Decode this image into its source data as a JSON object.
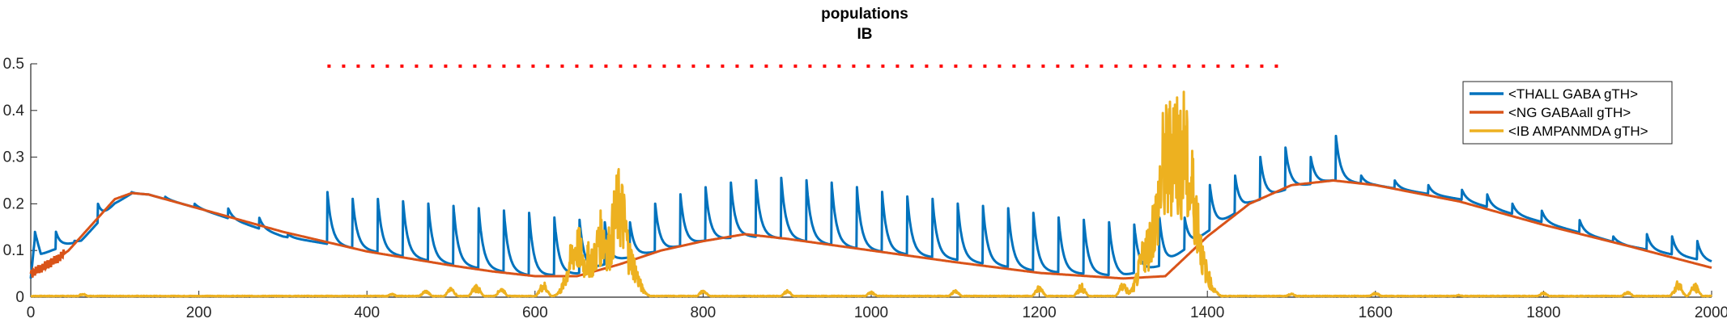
{
  "chart_data": {
    "type": "line",
    "title": "populations",
    "subtitle": "IB",
    "xlabel": "",
    "ylabel": "",
    "xlim": [
      0,
      2000
    ],
    "ylim": [
      0,
      0.5
    ],
    "x_ticks": [
      0,
      200,
      400,
      600,
      800,
      1000,
      1200,
      1400,
      1600,
      1800,
      2000
    ],
    "y_ticks": [
      0,
      0.1,
      0.2,
      0.3,
      0.4,
      0.5
    ],
    "y_tick_labels": [
      "0",
      "0.1",
      "0.2",
      "0.3",
      "0.4",
      "0.5"
    ],
    "grid": false,
    "legend_position": "top-right",
    "series": [
      {
        "name": "<THALL GABA gTH>",
        "color": "#0072BD",
        "baseline_points": [
          [
            0,
            0.04
          ],
          [
            5,
            0.13
          ],
          [
            12,
            0.09
          ],
          [
            25,
            0.1
          ],
          [
            40,
            0.11
          ],
          [
            60,
            0.12
          ],
          [
            80,
            0.16
          ],
          [
            100,
            0.2
          ],
          [
            120,
            0.222
          ],
          [
            140,
            0.22
          ],
          [
            200,
            0.19
          ],
          [
            300,
            0.13
          ],
          [
            350,
            0.115
          ],
          [
            400,
            0.1
          ],
          [
            500,
            0.07
          ],
          [
            600,
            0.045
          ],
          [
            650,
            0.05
          ],
          [
            700,
            0.08
          ],
          [
            750,
            0.1
          ],
          [
            800,
            0.12
          ],
          [
            850,
            0.13
          ],
          [
            900,
            0.125
          ],
          [
            1000,
            0.1
          ],
          [
            1100,
            0.08
          ],
          [
            1200,
            0.055
          ],
          [
            1300,
            0.045
          ],
          [
            1350,
            0.07
          ],
          [
            1400,
            0.14
          ],
          [
            1450,
            0.2
          ],
          [
            1500,
            0.235
          ],
          [
            1550,
            0.25
          ],
          [
            1600,
            0.24
          ],
          [
            1700,
            0.21
          ],
          [
            1800,
            0.16
          ],
          [
            1900,
            0.11
          ],
          [
            2000,
            0.075
          ]
        ],
        "pulse_times": [
          5,
          30,
          52,
          80,
          120,
          160,
          195,
          235,
          272,
          306,
          353,
          383,
          413,
          443,
          473,
          503,
          533,
          563,
          593,
          623,
          653,
          683,
          713,
          743,
          773,
          803,
          833,
          863,
          893,
          923,
          953,
          983,
          1013,
          1043,
          1073,
          1103,
          1133,
          1163,
          1193,
          1223,
          1253,
          1283,
          1313,
          1343,
          1373,
          1403,
          1433,
          1463,
          1493,
          1523,
          1553,
          1583,
          1623,
          1663,
          1703,
          1733,
          1763,
          1798,
          1843,
          1883,
          1923,
          1953,
          1983
        ],
        "pulse_peaks": [
          0.14,
          0.14,
          0.12,
          0.2,
          0.225,
          0.215,
          0.2,
          0.19,
          0.17,
          0.135,
          0.225,
          0.21,
          0.21,
          0.205,
          0.2,
          0.195,
          0.19,
          0.185,
          0.18,
          0.17,
          0.165,
          0.16,
          0.16,
          0.2,
          0.22,
          0.235,
          0.245,
          0.25,
          0.255,
          0.25,
          0.245,
          0.235,
          0.225,
          0.215,
          0.21,
          0.2,
          0.195,
          0.19,
          0.18,
          0.17,
          0.165,
          0.16,
          0.155,
          0.17,
          0.17,
          0.24,
          0.26,
          0.3,
          0.32,
          0.3,
          0.345,
          0.26,
          0.25,
          0.24,
          0.23,
          0.22,
          0.2,
          0.185,
          0.165,
          0.13,
          0.135,
          0.13,
          0.12
        ]
      },
      {
        "name": "<NG GABAall gTH>",
        "color": "#D95319",
        "points": [
          [
            0,
            0.05
          ],
          [
            10,
            0.06
          ],
          [
            20,
            0.07
          ],
          [
            30,
            0.08
          ],
          [
            45,
            0.1
          ],
          [
            60,
            0.13
          ],
          [
            80,
            0.17
          ],
          [
            100,
            0.21
          ],
          [
            120,
            0.223
          ],
          [
            140,
            0.22
          ],
          [
            200,
            0.19
          ],
          [
            300,
            0.14
          ],
          [
            400,
            0.098
          ],
          [
            500,
            0.068
          ],
          [
            550,
            0.055
          ],
          [
            600,
            0.045
          ],
          [
            650,
            0.045
          ],
          [
            700,
            0.07
          ],
          [
            750,
            0.1
          ],
          [
            800,
            0.12
          ],
          [
            850,
            0.135
          ],
          [
            900,
            0.125
          ],
          [
            1000,
            0.1
          ],
          [
            1100,
            0.075
          ],
          [
            1200,
            0.052
          ],
          [
            1300,
            0.04
          ],
          [
            1350,
            0.045
          ],
          [
            1400,
            0.13
          ],
          [
            1450,
            0.2
          ],
          [
            1500,
            0.24
          ],
          [
            1550,
            0.25
          ],
          [
            1600,
            0.24
          ],
          [
            1700,
            0.205
          ],
          [
            1800,
            0.155
          ],
          [
            1900,
            0.11
          ],
          [
            2000,
            0.063
          ]
        ]
      },
      {
        "name": "<IB AMPANMDA gTH>",
        "color": "#EDB120",
        "baseline": 0.003,
        "bumps": [
          [
            62,
            0.008
          ],
          [
            430,
            0.007
          ],
          [
            470,
            0.015
          ],
          [
            500,
            0.02
          ],
          [
            530,
            0.03
          ],
          [
            560,
            0.02
          ],
          [
            610,
            0.035
          ],
          [
            640,
            0.07
          ],
          [
            650,
            0.155
          ],
          [
            665,
            0.12
          ],
          [
            680,
            0.19
          ],
          [
            690,
            0.16
          ],
          [
            700,
            0.28
          ],
          [
            710,
            0.13
          ],
          [
            720,
            0.04
          ],
          [
            800,
            0.015
          ],
          [
            900,
            0.015
          ],
          [
            1000,
            0.012
          ],
          [
            1100,
            0.015
          ],
          [
            1200,
            0.025
          ],
          [
            1250,
            0.03
          ],
          [
            1300,
            0.035
          ],
          [
            1320,
            0.06
          ],
          [
            1330,
            0.16
          ],
          [
            1340,
            0.25
          ],
          [
            1350,
            0.42
          ],
          [
            1360,
            0.5
          ],
          [
            1370,
            0.47
          ],
          [
            1380,
            0.34
          ],
          [
            1390,
            0.12
          ],
          [
            1395,
            0.04
          ],
          [
            1500,
            0.008
          ],
          [
            1600,
            0.01
          ],
          [
            1700,
            0.005
          ],
          [
            1800,
            0.01
          ],
          [
            1900,
            0.012
          ],
          [
            1960,
            0.04
          ],
          [
            1980,
            0.03
          ]
        ]
      },
      {
        "name": "",
        "color": "#FF0000",
        "style": "dotted",
        "points": [
          [
            353,
            0.495
          ],
          [
            1493,
            0.495
          ]
        ]
      }
    ]
  }
}
